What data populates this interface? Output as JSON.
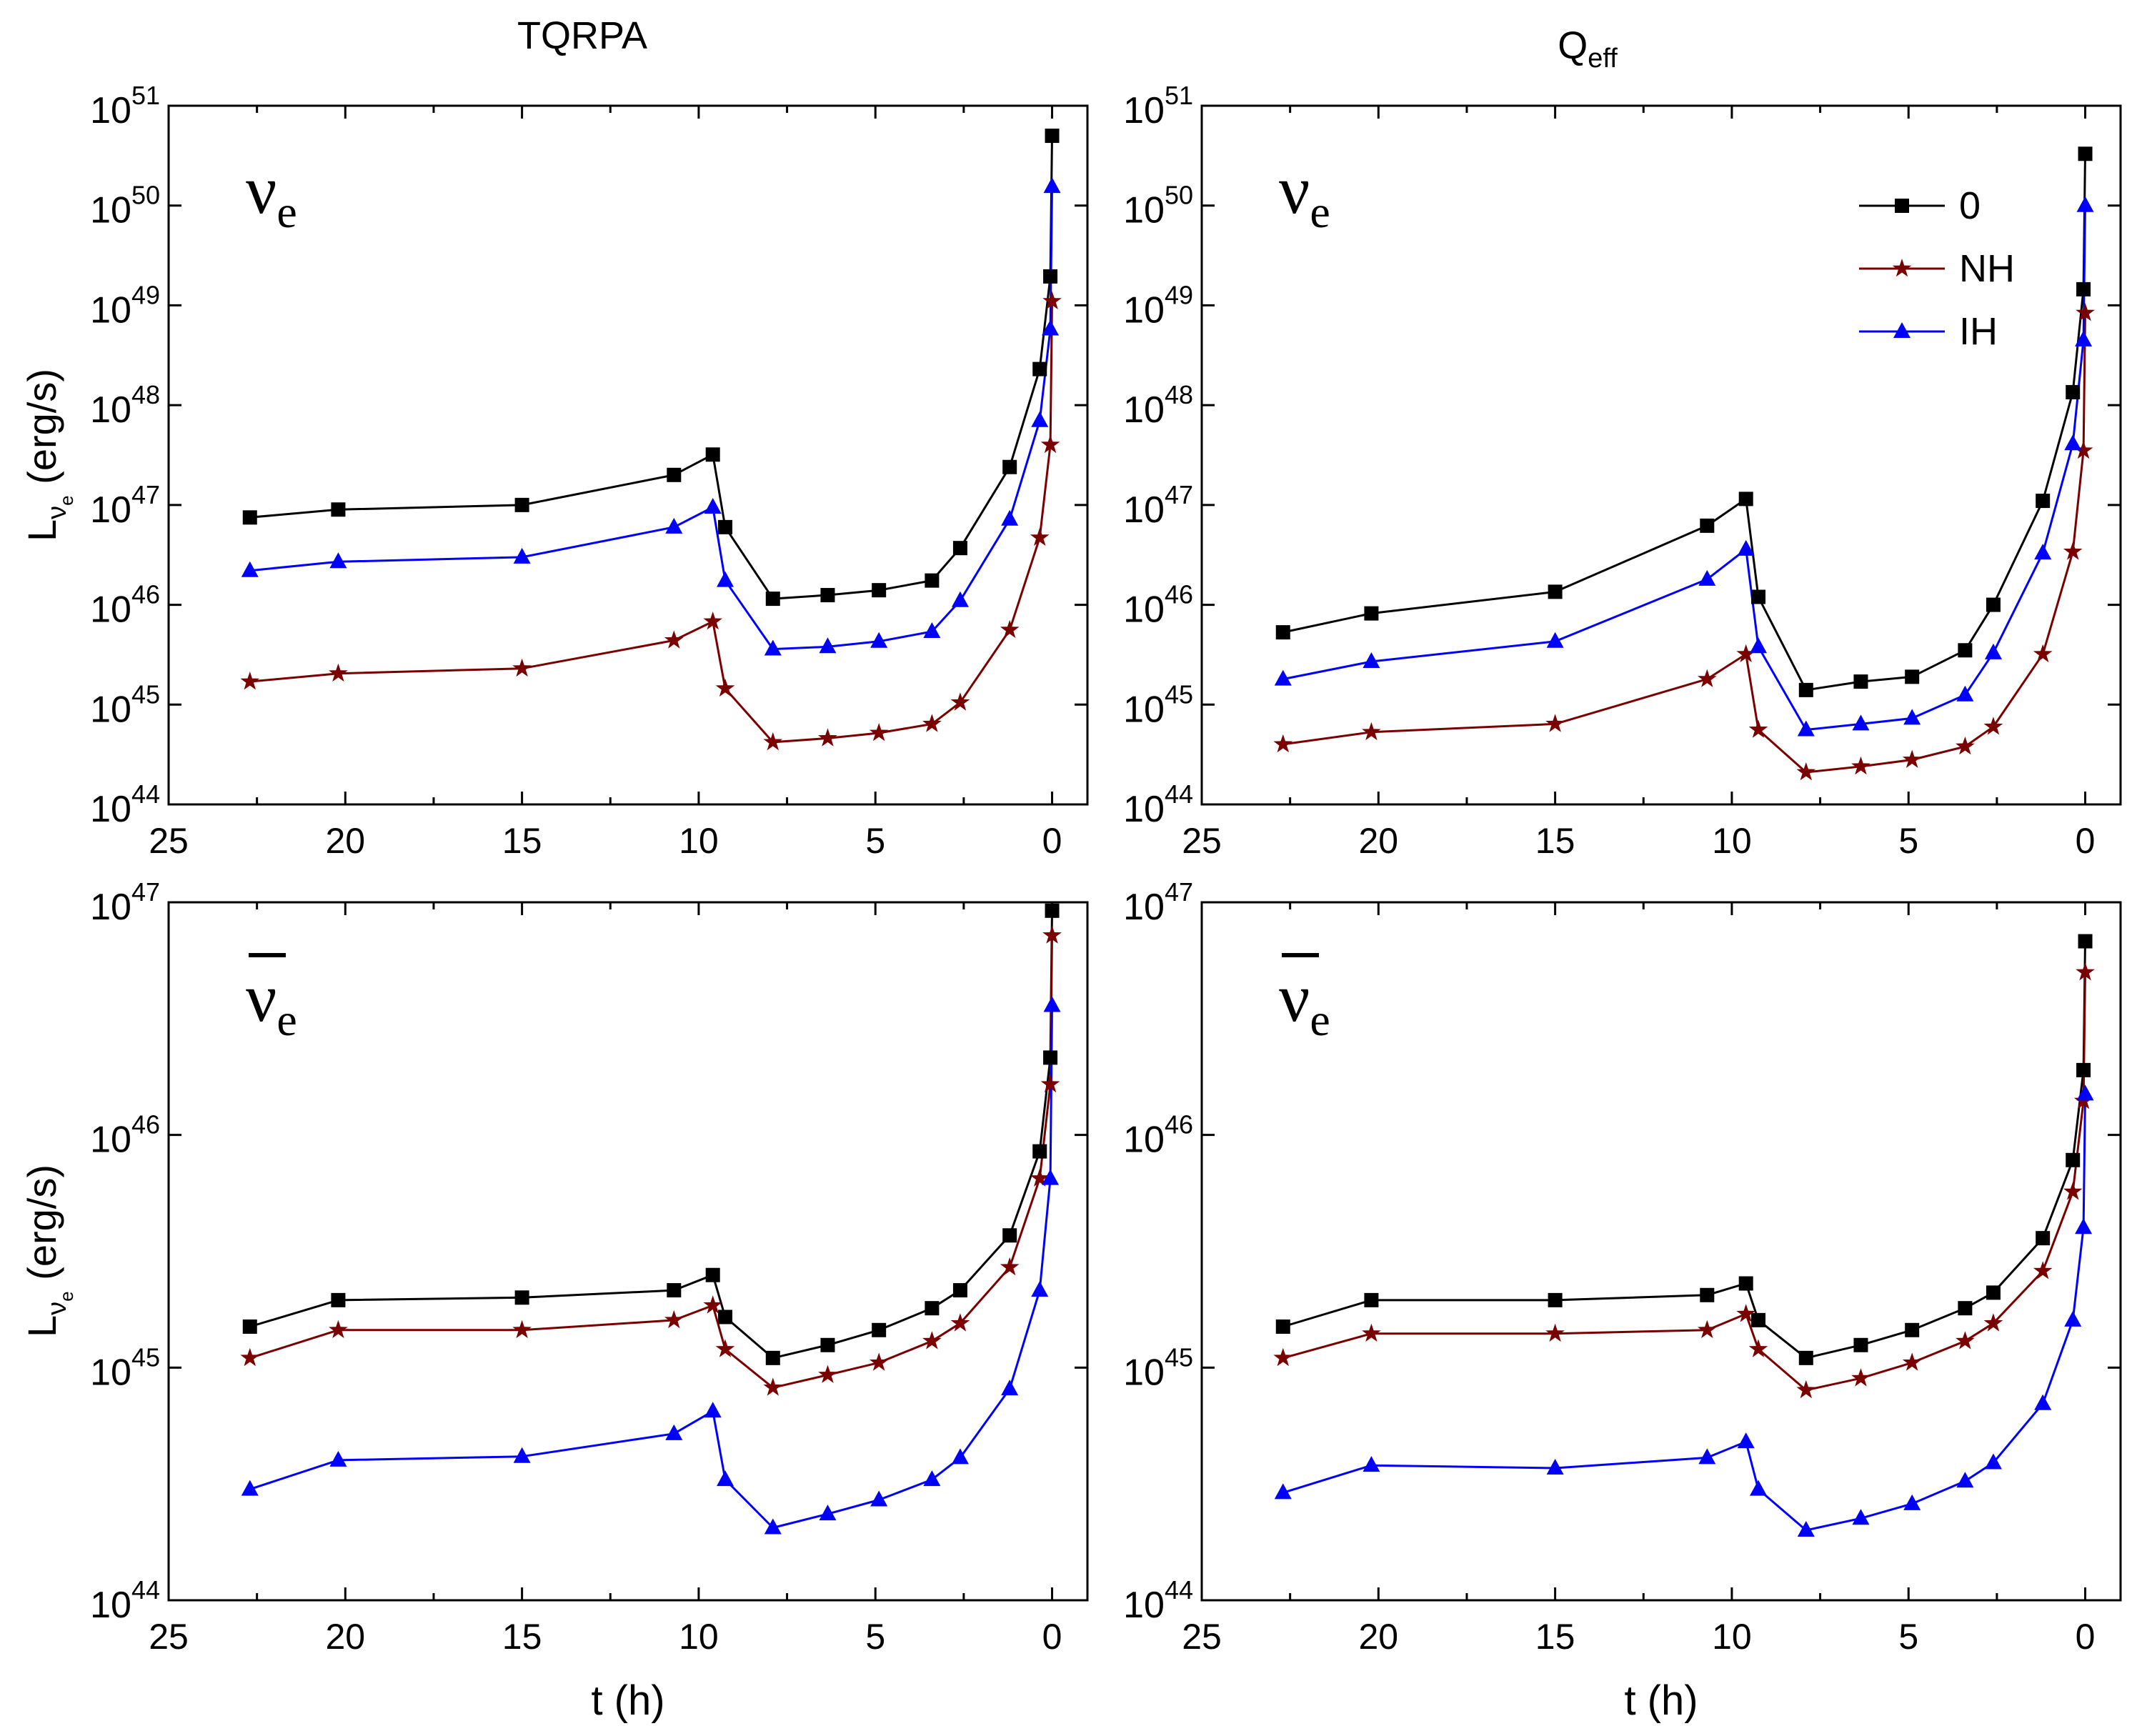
{
  "figure": {
    "col_titles": [
      {
        "base": "TQRPA",
        "sub": ""
      },
      {
        "base": "Q",
        "sub": "eff"
      }
    ],
    "xlabel": "t (h)",
    "ylabels": [
      {
        "base": "L",
        "sub": "ν",
        "subsub": "e",
        "tail": " (erg/s)",
        "bar": false
      },
      {
        "base": "L",
        "sub": "ν",
        "subsub": "e",
        "tail": " (erg/s)",
        "bar": true
      }
    ],
    "panel_labels": [
      {
        "base": "ν",
        "sub": "e",
        "bar": false
      },
      {
        "base": "ν",
        "sub": "e",
        "bar": true
      }
    ],
    "x_ticks": [
      25,
      20,
      15,
      10,
      5,
      0
    ],
    "legend": [
      "0",
      "NH",
      "IH"
    ],
    "colors": {
      "zero": "#000000",
      "NH": "#7a0000",
      "IH": "#0000ff"
    }
  },
  "chart_data": [
    {
      "type": "line",
      "id": "tqrpa-nue",
      "title": "TQRPA",
      "label": "ν_e",
      "xlabel": "",
      "ylabel": "L_νe (erg/s)",
      "xscale": "linear",
      "xlim": [
        25,
        -1
      ],
      "yscale": "log",
      "ylim": [
        1e+44,
        1e+51
      ],
      "legend": false,
      "x": [
        22.7,
        20.2,
        15.0,
        10.7,
        9.6,
        9.25,
        7.9,
        6.35,
        4.9,
        3.4,
        2.6,
        1.2,
        0.35,
        0.05,
        0.0,
        -0.02
      ],
      "series": [
        {
          "name": "0",
          "marker": "square",
          "values": [
            7.5e+46,
            9e+46,
            1e+47,
            2e+47,
            3.2e+47,
            6e+46,
            1.15e+46,
            1.25e+46,
            1.4e+46,
            1.75e+46,
            3.7e+46,
            2.4e+47,
            2.3e+48,
            1.95e+49,
            5e+50,
            5e+50
          ]
        },
        {
          "name": "NH",
          "marker": "star",
          "values": [
            1.7e+45,
            2.05e+45,
            2.3e+45,
            4.4e+45,
            6.8e+45,
            1.45e+45,
            4.2e+44,
            4.6e+44,
            5.2e+44,
            6.4e+44,
            1.05e+45,
            5.6e+45,
            4.7e+46,
            4e+47,
            1.1e+49,
            1.1e+49
          ]
        },
        {
          "name": "IH",
          "marker": "triangle",
          "values": [
            2.2e+46,
            2.7e+46,
            3e+46,
            6e+46,
            9.5e+46,
            1.75e+46,
            3.6e+45,
            3.8e+45,
            4.3e+45,
            5.4e+45,
            1.1e+46,
            7.2e+46,
            7e+47,
            5.8e+48,
            1.55e+50,
            1.55e+50
          ]
        }
      ]
    },
    {
      "type": "line",
      "id": "qeff-nue",
      "title": "Q_eff",
      "label": "ν_e",
      "xlabel": "",
      "ylabel": "",
      "xscale": "linear",
      "xlim": [
        25,
        -1
      ],
      "yscale": "log",
      "ylim": [
        1e+44,
        1e+51
      ],
      "legend": true,
      "legend_position": "top-right",
      "x": [
        22.7,
        20.2,
        15.0,
        10.7,
        9.6,
        9.25,
        7.9,
        6.35,
        4.9,
        3.4,
        2.6,
        1.2,
        0.35,
        0.05,
        0.0,
        -0.02
      ],
      "series": [
        {
          "name": "0",
          "marker": "square",
          "values": [
            5.3e+45,
            8.2e+45,
            1.35e+46,
            6.2e+46,
            1.15e+47,
            1.2e+46,
            1.4e+45,
            1.7e+45,
            1.9e+45,
            3.5e+45,
            1e+46,
            1.1e+47,
            1.35e+48,
            1.45e+49,
            3.3e+50,
            3.3e+50
          ]
        },
        {
          "name": "NH",
          "marker": "star",
          "values": [
            4e+44,
            5.3e+44,
            6.4e+44,
            1.8e+45,
            3.2e+45,
            5.6e+44,
            2.1e+44,
            2.4e+44,
            2.8e+44,
            3.8e+44,
            6e+44,
            3.2e+45,
            3.4e+46,
            3.5e+47,
            8.4e+48,
            8.4e+48
          ]
        },
        {
          "name": "IH",
          "marker": "triangle",
          "values": [
            1.8e+45,
            2.7e+45,
            4.3e+45,
            1.8e+46,
            3.6e+46,
            3.8e+45,
            5.6e+44,
            6.4e+44,
            7.3e+44,
            1.25e+45,
            3.3e+45,
            3.3e+46,
            4.1e+47,
            4.5e+48,
            1e+50,
            1e+50
          ]
        }
      ]
    },
    {
      "type": "line",
      "id": "tqrpa-anue",
      "title": "",
      "label": "anti-ν_e",
      "xlabel": "t (h)",
      "ylabel": "L_anti-νe (erg/s)",
      "xscale": "linear",
      "xlim": [
        25,
        -1
      ],
      "yscale": "log",
      "ylim": [
        1e+44,
        1e+47
      ],
      "legend": false,
      "x": [
        22.7,
        20.2,
        15.0,
        10.7,
        9.6,
        9.25,
        7.9,
        6.35,
        4.9,
        3.4,
        2.6,
        1.2,
        0.35,
        0.05,
        0.0,
        -0.02
      ],
      "series": [
        {
          "name": "0",
          "marker": "square",
          "values": [
            1.5e+45,
            1.95e+45,
            2e+45,
            2.15e+45,
            2.5e+45,
            1.65e+45,
            1.1e+45,
            1.25e+45,
            1.45e+45,
            1.8e+45,
            2.15e+45,
            3.7e+45,
            8.5e+45,
            2.15e+46,
            9.2e+46,
            9.2e+46
          ]
        },
        {
          "name": "NH",
          "marker": "star",
          "values": [
            1.1e+45,
            1.45e+45,
            1.45e+45,
            1.6e+45,
            1.85e+45,
            1.2e+45,
            8.2e+44,
            9.3e+44,
            1.05e+45,
            1.3e+45,
            1.55e+45,
            2.7e+45,
            6.5e+45,
            1.65e+46,
            7.2e+46,
            7.2e+46
          ]
        },
        {
          "name": "IH",
          "marker": "triangle",
          "values": [
            3e+44,
            4e+44,
            4.15e+44,
            5.2e+44,
            6.5e+44,
            3.3e+44,
            2.05e+44,
            2.35e+44,
            2.7e+44,
            3.3e+44,
            4.1e+44,
            8.1e+44,
            2.15e+45,
            6.5e+45,
            3.6e+46,
            3.6e+46
          ]
        }
      ]
    },
    {
      "type": "line",
      "id": "qeff-anue",
      "title": "",
      "label": "anti-ν_e",
      "xlabel": "t (h)",
      "ylabel": "",
      "xscale": "linear",
      "xlim": [
        25,
        -1
      ],
      "yscale": "log",
      "ylim": [
        1e+44,
        1e+47
      ],
      "legend": false,
      "x": [
        22.7,
        20.2,
        15.0,
        10.7,
        9.6,
        9.25,
        7.9,
        6.35,
        4.9,
        3.4,
        2.6,
        1.2,
        0.35,
        0.05,
        0.0,
        -0.02
      ],
      "series": [
        {
          "name": "0",
          "marker": "square",
          "values": [
            1.5e+45,
            1.95e+45,
            1.95e+45,
            2.05e+45,
            2.3e+45,
            1.6e+45,
            1.1e+45,
            1.25e+45,
            1.45e+45,
            1.8e+45,
            2.1e+45,
            3.6e+45,
            7.8e+45,
            1.9e+46,
            6.8e+46,
            6.8e+46
          ]
        },
        {
          "name": "NH",
          "marker": "star",
          "values": [
            1.1e+45,
            1.4e+45,
            1.4e+45,
            1.45e+45,
            1.7e+45,
            1.2e+45,
            8e+44,
            9e+44,
            1.05e+45,
            1.3e+45,
            1.55e+45,
            2.6e+45,
            5.7e+45,
            1.4e+46,
            5e+46,
            5e+46
          ]
        },
        {
          "name": "IH",
          "marker": "triangle",
          "values": [
            2.9e+44,
            3.8e+44,
            3.7e+44,
            4.1e+44,
            4.8e+44,
            3e+44,
            2e+44,
            2.25e+44,
            2.6e+44,
            3.25e+44,
            3.9e+44,
            7e+44,
            1.6e+45,
            4e+45,
            1.5e+46,
            1.5e+46
          ]
        }
      ]
    }
  ]
}
